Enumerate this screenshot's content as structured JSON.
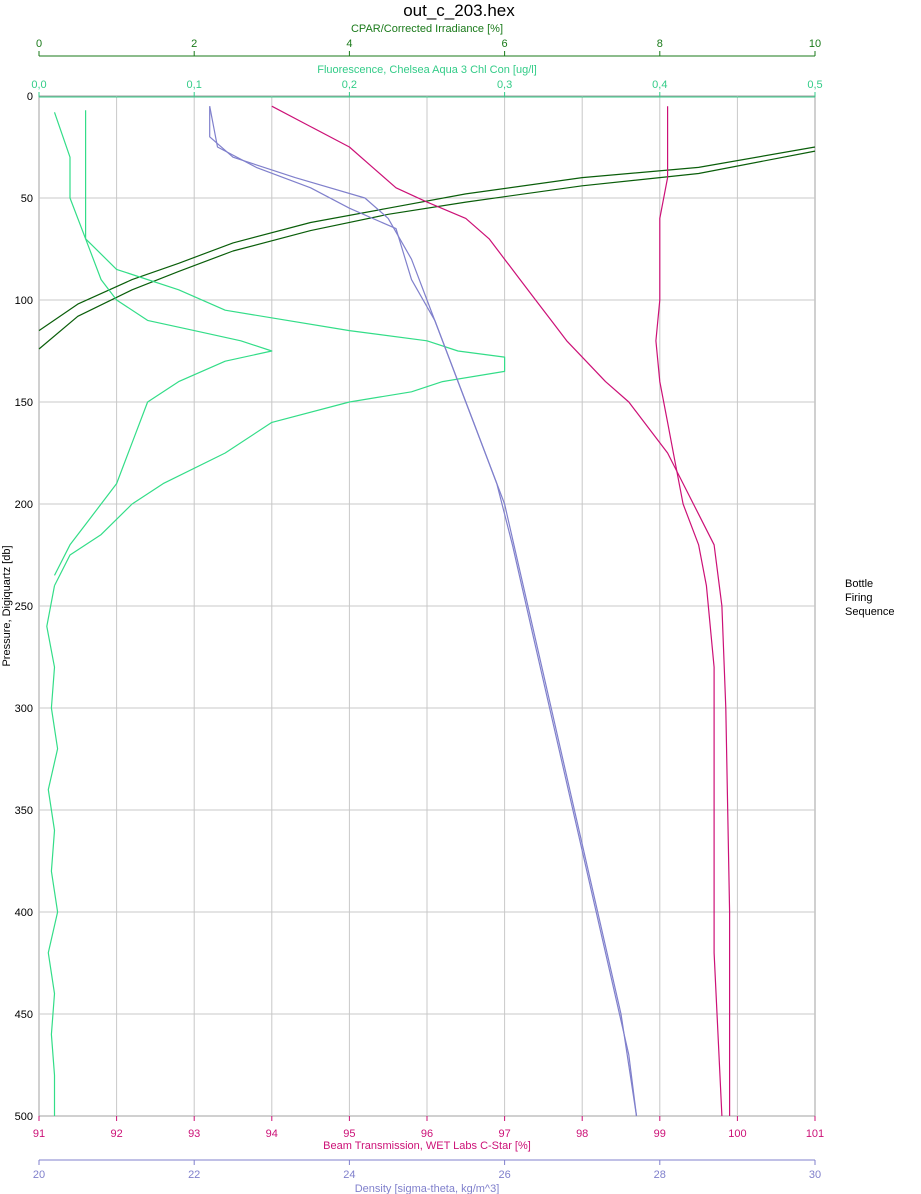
{
  "chart_data": {
    "type": "line",
    "title": "out_c_203.hex",
    "grid": true,
    "y_axis": {
      "label": "Pressure, Digiquartz [db]",
      "range": [
        0,
        500
      ],
      "inverted": true,
      "ticks": [
        "0",
        "50",
        "100",
        "150",
        "200",
        "250",
        "300",
        "350",
        "400",
        "450",
        "500"
      ],
      "color": "#000000"
    },
    "top_axes": [
      {
        "label": "CPAR/Corrected Irradiance [%]",
        "range": [
          0,
          10
        ],
        "ticks": [
          "0",
          "2",
          "4",
          "6",
          "8",
          "10"
        ],
        "color": "#1a7a1a"
      },
      {
        "label": "Fluorescence, Chelsea Aqua 3 Chl Con [ug/l]",
        "range": [
          0,
          0.5
        ],
        "ticks": [
          "0,0",
          "0,1",
          "0,2",
          "0,3",
          "0,4",
          "0,5"
        ],
        "color": "#33cc88"
      }
    ],
    "bottom_axes": [
      {
        "label": "Beam Transmission, WET Labs C-Star [%]",
        "range": [
          91,
          101
        ],
        "ticks": [
          "91",
          "92",
          "93",
          "94",
          "95",
          "96",
          "97",
          "98",
          "99",
          "100",
          "101"
        ],
        "color": "#cc1177"
      },
      {
        "label": "Density [sigma-theta, kg/m^3]",
        "range": [
          20,
          30
        ],
        "ticks": [
          "20",
          "22",
          "24",
          "26",
          "28",
          "30"
        ],
        "color": "#8080cc"
      }
    ],
    "legend": {
      "lines": [
        "Bottle",
        "Firing",
        "Sequence"
      ],
      "placement": "right",
      "color": "#000000"
    },
    "series": [
      {
        "axis": "CPAR",
        "color": "#0a5e0a",
        "points": [
          [
            10,
            25
          ],
          [
            8.5,
            35
          ],
          [
            7,
            40
          ],
          [
            5.5,
            48
          ],
          [
            4.5,
            55
          ],
          [
            3.5,
            62
          ],
          [
            2.5,
            72
          ],
          [
            1.8,
            82
          ],
          [
            1.2,
            90
          ],
          [
            0.5,
            102
          ],
          [
            0,
            115
          ]
        ]
      },
      {
        "axis": "CPAR",
        "color": "#0a5e0a",
        "points": [
          [
            10,
            27
          ],
          [
            8.5,
            38
          ],
          [
            7,
            44
          ],
          [
            5.5,
            52
          ],
          [
            4.5,
            58
          ],
          [
            3.5,
            66
          ],
          [
            2.5,
            76
          ],
          [
            1.8,
            86
          ],
          [
            1.2,
            95
          ],
          [
            0.5,
            108
          ],
          [
            0,
            124
          ]
        ]
      },
      {
        "axis": "Fluorescence",
        "color": "#33dd88",
        "points": [
          [
            0.01,
            8
          ],
          [
            0.02,
            30
          ],
          [
            0.02,
            50
          ],
          [
            0.03,
            70
          ],
          [
            0.05,
            85
          ],
          [
            0.09,
            95
          ],
          [
            0.12,
            105
          ],
          [
            0.2,
            115
          ],
          [
            0.25,
            120
          ],
          [
            0.27,
            125
          ],
          [
            0.3,
            128
          ],
          [
            0.3,
            131
          ],
          [
            0.3,
            135
          ],
          [
            0.26,
            140
          ],
          [
            0.24,
            145
          ],
          [
            0.2,
            150
          ],
          [
            0.15,
            160
          ],
          [
            0.12,
            175
          ],
          [
            0.08,
            190
          ],
          [
            0.06,
            200
          ],
          [
            0.04,
            215
          ],
          [
            0.02,
            225
          ],
          [
            0.01,
            240
          ]
        ]
      },
      {
        "axis": "Fluorescence",
        "color": "#33dd88",
        "points": [
          [
            0.03,
            7
          ],
          [
            0.03,
            40
          ],
          [
            0.03,
            70
          ],
          [
            0.04,
            90
          ],
          [
            0.05,
            100
          ],
          [
            0.07,
            110
          ],
          [
            0.1,
            115
          ],
          [
            0.13,
            120
          ],
          [
            0.15,
            125
          ],
          [
            0.12,
            130
          ],
          [
            0.09,
            140
          ],
          [
            0.07,
            150
          ],
          [
            0.06,
            170
          ],
          [
            0.05,
            190
          ],
          [
            0.04,
            200
          ],
          [
            0.03,
            210
          ],
          [
            0.02,
            220
          ],
          [
            0.01,
            235
          ]
        ]
      },
      {
        "axis": "Fluorescence",
        "color": "#33dd88",
        "points": [
          [
            0.01,
            240
          ],
          [
            0.005,
            260
          ],
          [
            0.01,
            280
          ],
          [
            0.008,
            300
          ],
          [
            0.012,
            320
          ],
          [
            0.006,
            340
          ],
          [
            0.01,
            360
          ],
          [
            0.008,
            380
          ],
          [
            0.012,
            400
          ],
          [
            0.006,
            420
          ],
          [
            0.01,
            440
          ],
          [
            0.008,
            460
          ],
          [
            0.01,
            480
          ],
          [
            0.01,
            500
          ]
        ]
      },
      {
        "axis": "Beam Transmission",
        "color": "#cc1177",
        "points": [
          [
            94.0,
            5
          ],
          [
            94.5,
            15
          ],
          [
            95.0,
            25
          ],
          [
            95.3,
            35
          ],
          [
            95.6,
            45
          ],
          [
            96.0,
            52
          ],
          [
            96.5,
            60
          ],
          [
            96.8,
            70
          ],
          [
            97.0,
            80
          ],
          [
            97.2,
            90
          ],
          [
            97.4,
            100
          ],
          [
            97.6,
            110
          ],
          [
            97.8,
            120
          ],
          [
            98.0,
            128
          ],
          [
            98.3,
            140
          ],
          [
            98.6,
            150
          ],
          [
            98.8,
            160
          ],
          [
            99.1,
            175
          ],
          [
            99.3,
            190
          ],
          [
            99.5,
            205
          ],
          [
            99.7,
            220
          ],
          [
            99.8,
            250
          ],
          [
            99.85,
            300
          ],
          [
            99.9,
            400
          ],
          [
            99.9,
            500
          ]
        ]
      },
      {
        "axis": "Beam Transmission",
        "color": "#cc1177",
        "points": [
          [
            99.1,
            5
          ],
          [
            99.1,
            40
          ],
          [
            99.0,
            60
          ],
          [
            99.0,
            100
          ],
          [
            98.95,
            120
          ],
          [
            99.0,
            140
          ],
          [
            99.1,
            160
          ],
          [
            99.2,
            180
          ],
          [
            99.3,
            200
          ],
          [
            99.5,
            220
          ],
          [
            99.6,
            240
          ],
          [
            99.7,
            280
          ],
          [
            99.7,
            350
          ],
          [
            99.7,
            420
          ],
          [
            99.8,
            500
          ]
        ]
      },
      {
        "axis": "Density",
        "color": "#8080cc",
        "points": [
          [
            22.2,
            5
          ],
          [
            22.2,
            20
          ],
          [
            22.5,
            30
          ],
          [
            23.3,
            40
          ],
          [
            24.2,
            50
          ],
          [
            24.5,
            60
          ],
          [
            24.8,
            80
          ],
          [
            25.0,
            100
          ],
          [
            25.3,
            130
          ],
          [
            25.5,
            150
          ],
          [
            25.8,
            180
          ],
          [
            26.0,
            200
          ],
          [
            26.3,
            250
          ],
          [
            26.6,
            300
          ],
          [
            26.9,
            350
          ],
          [
            27.2,
            400
          ],
          [
            27.5,
            450
          ],
          [
            27.7,
            500
          ]
        ]
      },
      {
        "axis": "Density",
        "color": "#8080cc",
        "points": [
          [
            22.2,
            5
          ],
          [
            22.3,
            25
          ],
          [
            22.8,
            35
          ],
          [
            23.5,
            45
          ],
          [
            24.0,
            55
          ],
          [
            24.6,
            65
          ],
          [
            24.8,
            90
          ],
          [
            25.1,
            110
          ],
          [
            25.4,
            140
          ],
          [
            25.6,
            160
          ],
          [
            25.9,
            190
          ],
          [
            26.1,
            220
          ],
          [
            26.4,
            270
          ],
          [
            26.7,
            320
          ],
          [
            27.0,
            370
          ],
          [
            27.3,
            420
          ],
          [
            27.6,
            470
          ],
          [
            27.7,
            500
          ]
        ]
      }
    ]
  }
}
